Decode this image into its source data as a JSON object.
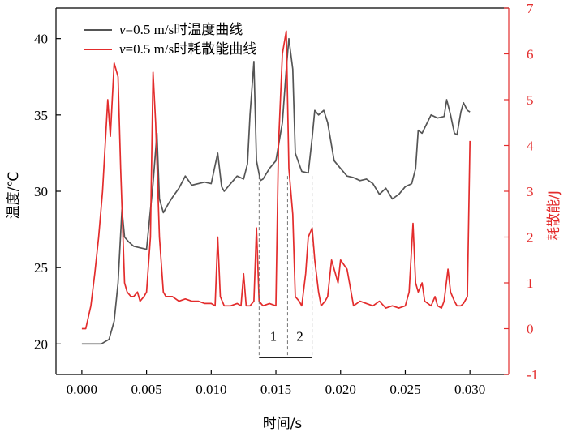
{
  "chart_data": {
    "type": "line",
    "xlabel": "时间/s",
    "ylabel": "温度/℃",
    "y2label": "耗散能/J",
    "xlim": [
      -0.002,
      0.033
    ],
    "ylim": [
      18,
      42
    ],
    "y2lim": [
      -1,
      7
    ],
    "xticks": [
      "0.000",
      "0.005",
      "0.010",
      "0.015",
      "0.020",
      "0.025",
      "0.030"
    ],
    "xtick_values": [
      0,
      0.005,
      0.01,
      0.015,
      0.02,
      0.025,
      0.03
    ],
    "yticks": [
      "20",
      "25",
      "30",
      "35",
      "40"
    ],
    "ytick_values": [
      20,
      25,
      30,
      35,
      40
    ],
    "y2ticks": [
      "-1",
      "0",
      "1",
      "2",
      "3",
      "4",
      "5",
      "6",
      "7"
    ],
    "y2tick_values": [
      -1,
      0,
      1,
      2,
      3,
      4,
      5,
      6,
      7
    ],
    "legend_position": "top-left",
    "series": [
      {
        "name": "v=0.5 m/s时温度曲线",
        "name_parts": [
          "v",
          "=0.5 m/s时温度曲线"
        ],
        "axis": "left",
        "color": "#555555",
        "x": [
          0,
          0.0015,
          0.0021,
          0.0025,
          0.0028,
          0.0031,
          0.0033,
          0.0036,
          0.004,
          0.0045,
          0.005,
          0.0055,
          0.0058,
          0.006,
          0.0063,
          0.0067,
          0.007,
          0.0075,
          0.008,
          0.0085,
          0.009,
          0.0095,
          0.01,
          0.0105,
          0.0108,
          0.011,
          0.0115,
          0.012,
          0.0125,
          0.0128,
          0.013,
          0.0133,
          0.0135,
          0.0138,
          0.014,
          0.0145,
          0.015,
          0.0155,
          0.0158,
          0.016,
          0.0163,
          0.0165,
          0.017,
          0.0175,
          0.0178,
          0.018,
          0.0183,
          0.0187,
          0.019,
          0.0195,
          0.02,
          0.0205,
          0.021,
          0.0215,
          0.022,
          0.0225,
          0.023,
          0.0235,
          0.024,
          0.0245,
          0.025,
          0.0255,
          0.0258,
          0.026,
          0.0263,
          0.0267,
          0.027,
          0.0275,
          0.028,
          0.0282,
          0.0285,
          0.0288,
          0.029,
          0.0293,
          0.0295,
          0.0298,
          0.03
        ],
        "y": [
          20,
          20,
          20.3,
          21.5,
          24,
          28.8,
          27,
          26.7,
          26.4,
          26.3,
          26.2,
          30.5,
          33.8,
          29.5,
          28.6,
          29.2,
          29.6,
          30.2,
          31,
          30.4,
          30.5,
          30.6,
          30.5,
          32.5,
          30.3,
          30,
          30.5,
          31,
          30.8,
          31.8,
          35,
          38.5,
          32,
          30.7,
          30.8,
          31.5,
          32,
          34.5,
          38,
          40,
          38,
          32.5,
          31.3,
          31.2,
          33.5,
          35.3,
          35,
          35.3,
          34.5,
          32,
          31.5,
          31,
          30.9,
          30.7,
          30.8,
          30.5,
          29.8,
          30.2,
          29.5,
          29.8,
          30.3,
          30.5,
          31.5,
          34,
          33.8,
          34.5,
          35,
          34.8,
          34.9,
          36,
          35,
          33.8,
          33.7,
          35.2,
          35.8,
          35.3,
          35.2
        ]
      },
      {
        "name": "v=0.5 m/s时耗散能曲线",
        "name_parts": [
          "v",
          "=0.5 m/s时耗散能曲线"
        ],
        "axis": "right",
        "color": "#e32c2c",
        "x": [
          0,
          0.0003,
          0.0007,
          0.001,
          0.0013,
          0.0016,
          0.0018,
          0.002,
          0.0022,
          0.0025,
          0.0028,
          0.003,
          0.0033,
          0.0035,
          0.0038,
          0.004,
          0.0043,
          0.0045,
          0.0048,
          0.005,
          0.0053,
          0.0055,
          0.0057,
          0.006,
          0.0063,
          0.0065,
          0.007,
          0.0075,
          0.008,
          0.0085,
          0.009,
          0.0095,
          0.01,
          0.0103,
          0.0105,
          0.0107,
          0.011,
          0.0115,
          0.012,
          0.0123,
          0.0125,
          0.0127,
          0.013,
          0.0133,
          0.0135,
          0.0137,
          0.014,
          0.0145,
          0.015,
          0.0152,
          0.0155,
          0.0158,
          0.016,
          0.0163,
          0.0165,
          0.0168,
          0.017,
          0.0173,
          0.0175,
          0.0178,
          0.018,
          0.0183,
          0.0185,
          0.0188,
          0.019,
          0.0193,
          0.0195,
          0.0198,
          0.02,
          0.0205,
          0.021,
          0.0215,
          0.022,
          0.0225,
          0.023,
          0.0235,
          0.024,
          0.0245,
          0.025,
          0.0253,
          0.0256,
          0.0258,
          0.026,
          0.0263,
          0.0265,
          0.027,
          0.0273,
          0.0275,
          0.0278,
          0.028,
          0.0283,
          0.0285,
          0.0288,
          0.029,
          0.0293,
          0.0295,
          0.0298,
          0.03
        ],
        "y": [
          0,
          0,
          0.5,
          1.2,
          2,
          3,
          4,
          5,
          4.2,
          5.8,
          5.5,
          3.5,
          1,
          0.8,
          0.7,
          0.7,
          0.8,
          0.6,
          0.7,
          0.8,
          2,
          5.6,
          4.5,
          2,
          0.8,
          0.7,
          0.7,
          0.6,
          0.65,
          0.6,
          0.6,
          0.55,
          0.55,
          0.5,
          2,
          0.7,
          0.5,
          0.5,
          0.55,
          0.5,
          1.2,
          0.5,
          0.5,
          0.6,
          2.2,
          0.6,
          0.5,
          0.55,
          0.5,
          4,
          6,
          6.5,
          3.5,
          2.5,
          0.7,
          0.6,
          0.5,
          1.2,
          2,
          2.2,
          1.5,
          0.8,
          0.5,
          0.6,
          0.7,
          1.5,
          1.3,
          1,
          1.5,
          1.3,
          0.5,
          0.6,
          0.55,
          0.5,
          0.6,
          0.45,
          0.5,
          0.45,
          0.5,
          0.8,
          2.3,
          1,
          0.8,
          1,
          0.6,
          0.5,
          0.7,
          0.5,
          0.45,
          0.6,
          1.3,
          0.8,
          0.6,
          0.5,
          0.5,
          0.55,
          0.7,
          4.1
        ]
      }
    ],
    "annotations": {
      "region_labels": [
        "1",
        "2"
      ],
      "dashed_lines_x": [
        0.0137,
        0.0159,
        0.0178
      ],
      "bracket_y": 19.1,
      "label_y": 20.2
    }
  }
}
